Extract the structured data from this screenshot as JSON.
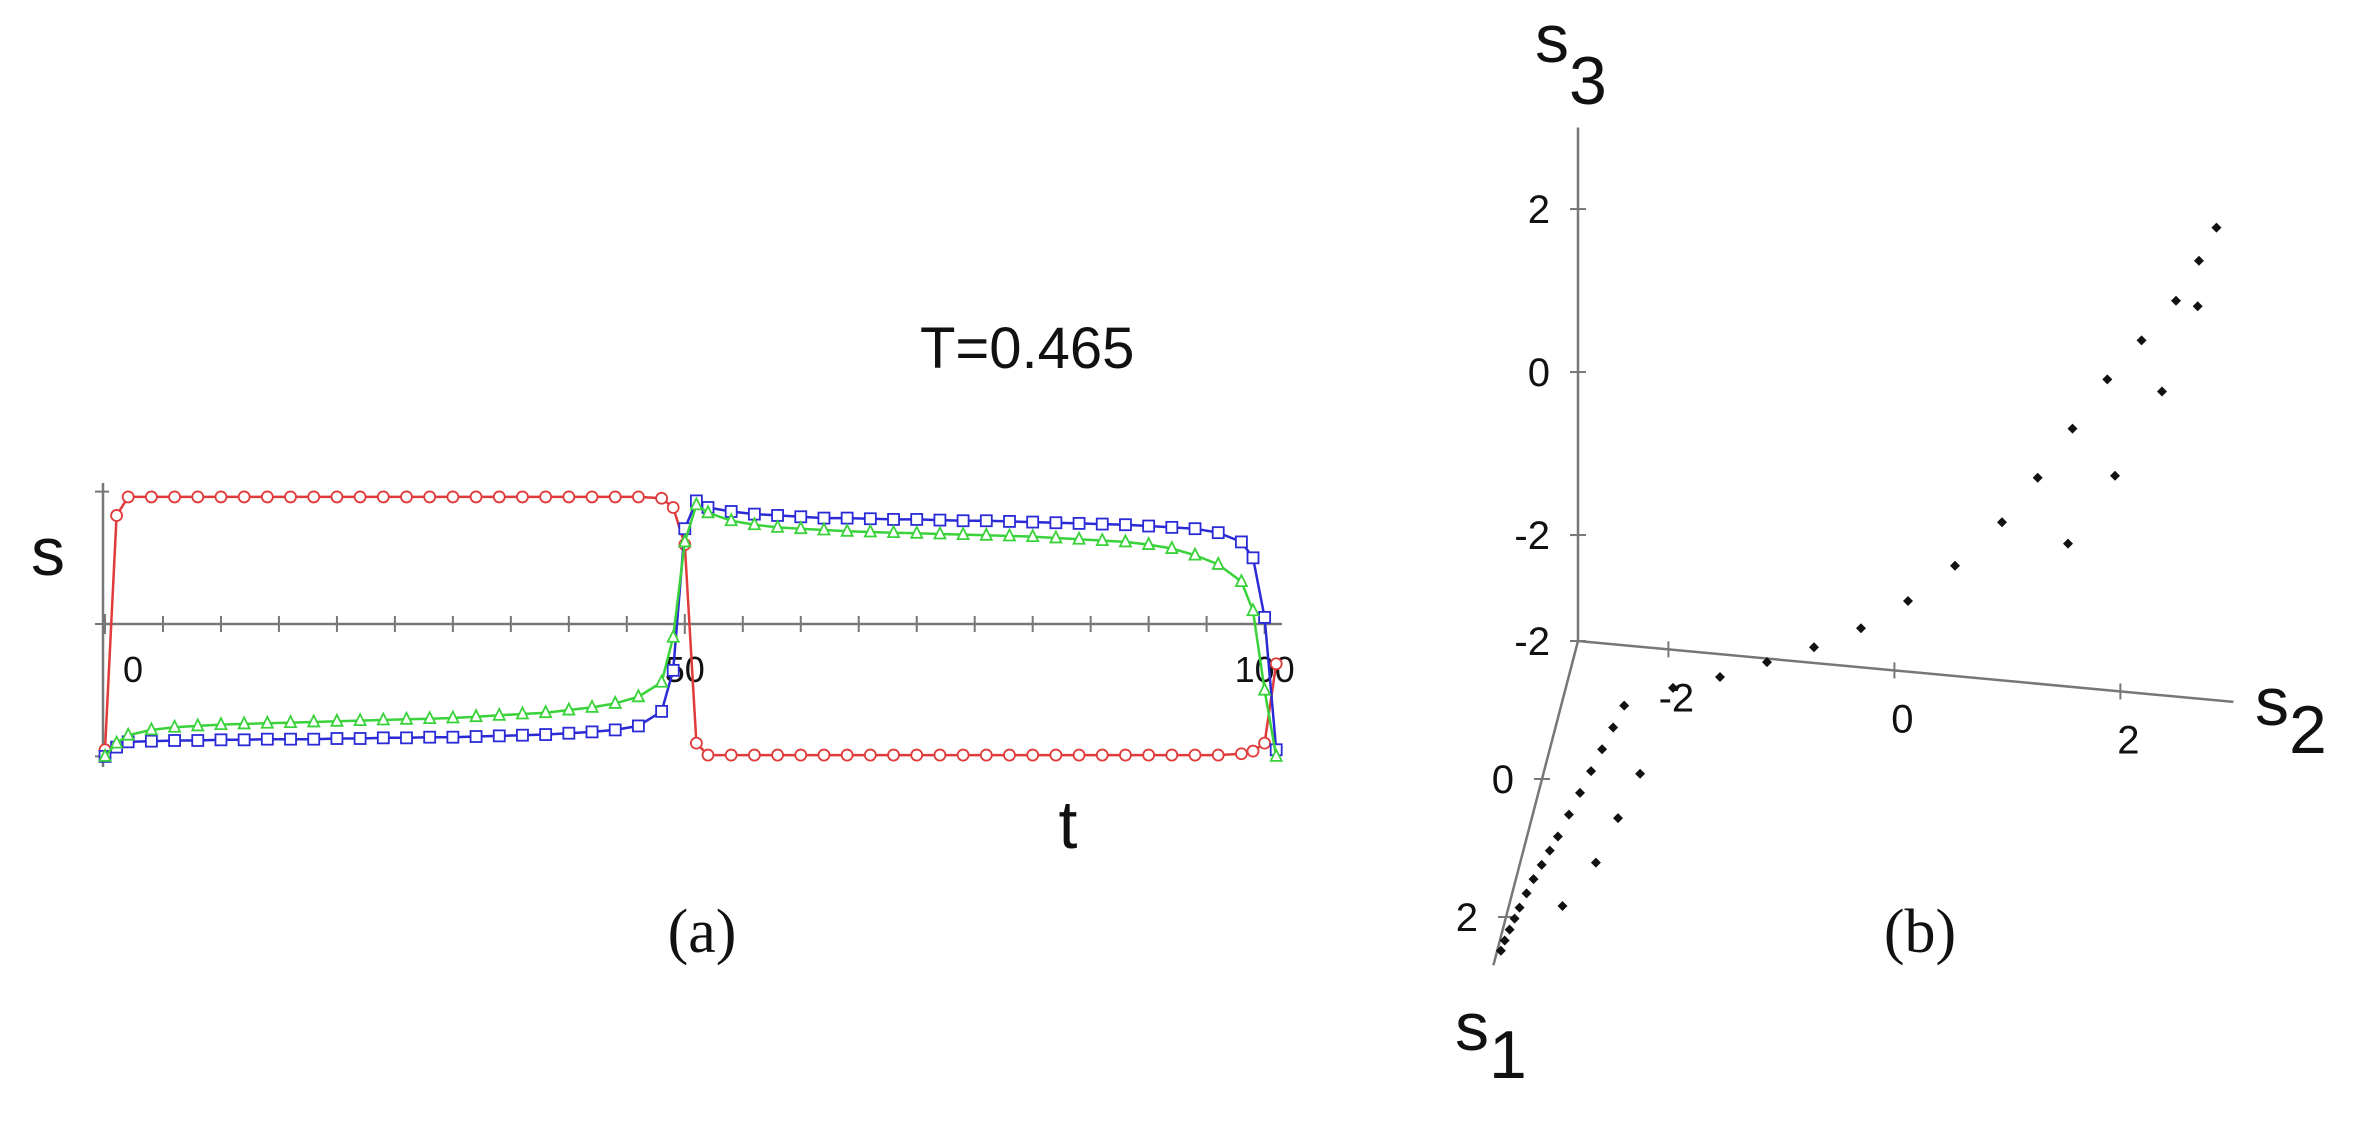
{
  "chart_data": [
    {
      "type": "line",
      "annotation": "T=0.465",
      "xlabel": "t",
      "ylabel": "s",
      "caption": "(a)",
      "x": [
        0,
        1,
        2,
        4,
        6,
        8,
        10,
        12,
        14,
        16,
        18,
        20,
        22,
        24,
        26,
        28,
        30,
        32,
        34,
        36,
        38,
        40,
        42,
        44,
        46,
        48,
        49,
        50,
        51,
        52,
        54,
        56,
        58,
        60,
        62,
        64,
        66,
        68,
        70,
        72,
        74,
        76,
        78,
        80,
        82,
        84,
        86,
        88,
        90,
        92,
        94,
        96,
        98,
        99,
        100,
        101
      ],
      "xlim": [
        0,
        101.5
      ],
      "xticks": [
        0,
        50,
        100
      ],
      "xminor": [
        5,
        10,
        15,
        20,
        25,
        30,
        35,
        40,
        45,
        55,
        60,
        65,
        70,
        75,
        80,
        85,
        90,
        95
      ],
      "ylim": [
        -1.05,
        1.05
      ],
      "ytick_marks": [
        -1,
        0,
        1
      ],
      "series": [
        {
          "color": "#e03a3a",
          "marker": "circle",
          "values": [
            -0.95,
            0.82,
            0.96,
            0.96,
            0.96,
            0.96,
            0.96,
            0.96,
            0.96,
            0.96,
            0.96,
            0.96,
            0.96,
            0.96,
            0.96,
            0.96,
            0.96,
            0.96,
            0.96,
            0.96,
            0.96,
            0.96,
            0.96,
            0.96,
            0.96,
            0.95,
            0.88,
            0.6,
            -0.9,
            -0.99,
            -0.99,
            -0.99,
            -0.99,
            -0.99,
            -0.99,
            -0.99,
            -0.99,
            -0.99,
            -0.99,
            -0.99,
            -0.99,
            -0.99,
            -0.99,
            -0.99,
            -0.99,
            -0.99,
            -0.99,
            -0.99,
            -0.99,
            -0.99,
            -0.99,
            -0.99,
            -0.98,
            -0.96,
            -0.9,
            -0.3
          ]
        },
        {
          "color": "#2a2ad6",
          "marker": "square",
          "values": [
            -1.0,
            -0.93,
            -0.89,
            -0.885,
            -0.88,
            -0.88,
            -0.875,
            -0.875,
            -0.87,
            -0.87,
            -0.87,
            -0.865,
            -0.865,
            -0.86,
            -0.86,
            -0.855,
            -0.855,
            -0.85,
            -0.845,
            -0.84,
            -0.835,
            -0.825,
            -0.815,
            -0.8,
            -0.77,
            -0.66,
            -0.35,
            0.72,
            0.93,
            0.88,
            0.85,
            0.83,
            0.82,
            0.81,
            0.8,
            0.8,
            0.795,
            0.79,
            0.79,
            0.785,
            0.78,
            0.78,
            0.775,
            0.77,
            0.765,
            0.76,
            0.755,
            0.75,
            0.74,
            0.73,
            0.72,
            0.69,
            0.62,
            0.5,
            0.05,
            -0.95
          ]
        },
        {
          "color": "#3ad23a",
          "marker": "triangle",
          "values": [
            -1.0,
            -0.9,
            -0.84,
            -0.8,
            -0.78,
            -0.77,
            -0.76,
            -0.755,
            -0.75,
            -0.745,
            -0.74,
            -0.735,
            -0.73,
            -0.725,
            -0.72,
            -0.715,
            -0.71,
            -0.7,
            -0.69,
            -0.68,
            -0.67,
            -0.65,
            -0.63,
            -0.6,
            -0.55,
            -0.44,
            -0.1,
            0.62,
            0.9,
            0.84,
            0.78,
            0.75,
            0.73,
            0.72,
            0.71,
            0.7,
            0.695,
            0.69,
            0.685,
            0.68,
            0.675,
            0.67,
            0.665,
            0.66,
            0.65,
            0.64,
            0.63,
            0.62,
            0.6,
            0.57,
            0.52,
            0.45,
            0.32,
            0.1,
            -0.5,
            -1.0
          ]
        }
      ]
    },
    {
      "type": "scatter3d",
      "caption": "(b)",
      "xlabel": {
        "base": "s",
        "sub": "1"
      },
      "ylabel": {
        "base": "s",
        "sub": "2"
      },
      "zlabel": {
        "base": "s",
        "sub": "3"
      },
      "xlim": [
        -2,
        2.7
      ],
      "ylim": [
        -2.8,
        3.0
      ],
      "zlim": [
        -3.3,
        3.0
      ],
      "xticks": [
        -2,
        0,
        2
      ],
      "yticks": [
        -2,
        0,
        2
      ],
      "zticks": [
        -2,
        0,
        2
      ],
      "color": "#111111",
      "x": [
        2.6,
        2.45,
        2.3,
        2.15,
        2.0,
        1.8,
        1.6,
        1.4,
        1.2,
        1.0,
        0.7,
        0.4,
        0.1,
        -0.2,
        -0.5,
        -0.8,
        -1.0,
        -1.1,
        -1.2,
        -1.3,
        -1.4,
        -1.5,
        -1.6,
        -1.7,
        -1.8,
        -1.85,
        -1.9,
        -1.92,
        -1.95,
        -1.97,
        -2.0,
        2.0,
        1.4,
        0.8,
        0.2,
        -1.6,
        -1.7,
        -1.8,
        -1.9
      ],
      "y": [
        -2.75,
        -2.74,
        -2.72,
        -2.7,
        -2.68,
        -2.65,
        -2.62,
        -2.58,
        -2.54,
        -2.5,
        -2.45,
        -2.4,
        -2.35,
        -2.3,
        -2.25,
        -2.2,
        -1.8,
        -1.4,
        -1.0,
        -0.6,
        -0.2,
        0.2,
        0.6,
        1.0,
        1.3,
        1.6,
        1.9,
        2.2,
        2.5,
        2.7,
        2.85,
        -2.3,
        -2.1,
        -2.0,
        -1.9,
        1.6,
        2.0,
        2.4,
        2.7
      ],
      "z": [
        -3.2,
        -3.2,
        -3.19,
        -3.18,
        -3.17,
        -3.16,
        -3.15,
        -3.14,
        -3.13,
        -3.12,
        -3.1,
        -3.08,
        -3.06,
        -3.04,
        -3.02,
        -3.0,
        -2.9,
        -2.8,
        -2.65,
        -2.5,
        -2.3,
        -2.0,
        -1.6,
        -1.1,
        -0.6,
        0,
        0.6,
        1.1,
        1.6,
        2.1,
        2.5,
        -3.1,
        -3.05,
        -3.0,
        -2.95,
        -1.2,
        -0.4,
        0.6,
        1.6
      ]
    }
  ]
}
